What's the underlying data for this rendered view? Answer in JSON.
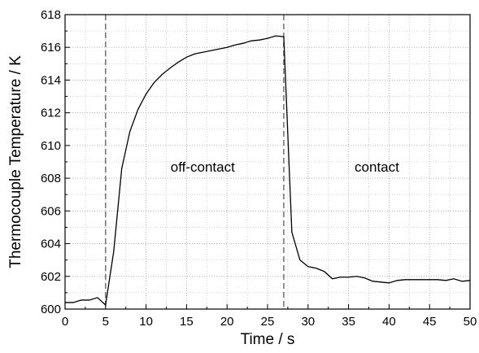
{
  "chart_data": {
    "type": "line",
    "xlabel": "Time / s",
    "ylabel": "Thermocouple Temperature / K",
    "xlim": [
      0,
      50
    ],
    "ylim": [
      600,
      618
    ],
    "x_ticks": [
      0,
      5,
      10,
      15,
      20,
      25,
      30,
      35,
      40,
      45,
      50
    ],
    "y_ticks": [
      600,
      602,
      604,
      606,
      608,
      610,
      612,
      614,
      616,
      618
    ],
    "grid": true,
    "series": [
      {
        "x": [
          0,
          1,
          2,
          3,
          4,
          5,
          6,
          7,
          8,
          9,
          10,
          11,
          12,
          13,
          14,
          15,
          16,
          17,
          18,
          19,
          20,
          21,
          22,
          23,
          24,
          25,
          26,
          27,
          28,
          29,
          30,
          31,
          32,
          33,
          34,
          35,
          36,
          37,
          38,
          39,
          40,
          41,
          42,
          43,
          44,
          45,
          46,
          47,
          48,
          49,
          50
        ],
        "y": [
          600.4,
          600.4,
          600.55,
          600.55,
          600.7,
          600.25,
          603.5,
          608.6,
          610.85,
          612.2,
          613.15,
          613.85,
          614.35,
          614.75,
          615.1,
          615.4,
          615.6,
          615.7,
          615.8,
          615.9,
          616.0,
          616.15,
          616.25,
          616.4,
          616.45,
          616.55,
          616.7,
          616.65,
          604.7,
          603.0,
          602.6,
          602.5,
          602.3,
          601.85,
          601.95,
          601.95,
          602.0,
          601.9,
          601.7,
          601.65,
          601.6,
          601.75,
          601.8,
          601.8,
          601.8,
          601.8,
          601.8,
          601.75,
          601.85,
          601.7,
          601.75
        ]
      }
    ],
    "vlines": [
      5,
      27
    ],
    "annotations": [
      {
        "text": "off-contact",
        "x": 17,
        "y": 608.4
      },
      {
        "text": "contact",
        "x": 38.5,
        "y": 608.4
      }
    ]
  }
}
